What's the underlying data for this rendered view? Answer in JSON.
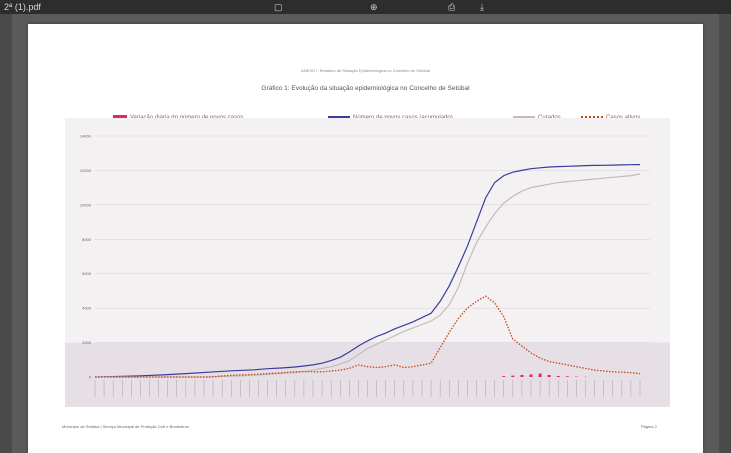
{
  "viewer": {
    "filename": "2ª (1).pdf",
    "icons": [
      "fullscreen-icon",
      "zoom-in-icon",
      "print-icon",
      "download-icon"
    ]
  },
  "document": {
    "header": "ANEXO I: Relatório de Situação Epidemiológica no Concelho de Setúbal",
    "footer_left": "Município de Setúbal | Serviço Municipal de Proteção Civil e Bombeiros",
    "footer_right": "Página 2"
  },
  "chart_data": {
    "type": "line",
    "title": "Gráfico 1: Evolução da situação epidemiológica no Concelho de Setúbal",
    "ylim": [
      0,
      14000
    ],
    "yticks": [
      "0",
      "2000",
      "4000",
      "6000",
      "8000",
      "10000",
      "12000",
      "14000"
    ],
    "legend_position": "top",
    "grid": true,
    "x_index": [
      0,
      5,
      10,
      15,
      20,
      25,
      30,
      35,
      38,
      41,
      44,
      46,
      48,
      50,
      52,
      54,
      56,
      58,
      60,
      62,
      64,
      66,
      68,
      70,
      72,
      74,
      76,
      78,
      80,
      82,
      84,
      86,
      88,
      90,
      92,
      94,
      96,
      98,
      100,
      102,
      104,
      106,
      108,
      110,
      112,
      114,
      116,
      118,
      120
    ],
    "series": [
      {
        "name": "Variação diária do número de novos casos.",
        "style": "bar",
        "color": "#e0246e",
        "values": [
          0,
          0,
          0,
          0,
          0,
          0,
          0,
          0,
          0,
          0,
          0,
          0,
          0,
          0,
          0,
          0,
          0,
          0,
          0,
          0,
          0,
          0,
          0,
          0,
          0,
          0,
          0,
          0,
          0,
          0,
          0,
          0,
          0,
          50,
          80,
          120,
          150,
          200,
          120,
          60,
          40,
          20,
          10,
          0,
          0,
          0,
          0,
          0,
          0
        ]
      },
      {
        "name": "Número de novos casos (acumulado).",
        "style": "solid",
        "color": "#3b3c9b",
        "values": [
          0,
          30,
          70,
          120,
          200,
          280,
          360,
          420,
          480,
          520,
          580,
          640,
          700,
          800,
          950,
          1150,
          1450,
          1800,
          2100,
          2350,
          2550,
          2800,
          3000,
          3200,
          3450,
          3700,
          4400,
          5300,
          6400,
          7600,
          9000,
          10400,
          11300,
          11700,
          11900,
          12000,
          12100,
          12150,
          12200,
          12220,
          12240,
          12260,
          12280,
          12290,
          12300,
          12310,
          12320,
          12330,
          12340
        ]
      },
      {
        "name": "Curados",
        "style": "solid",
        "color": "#c8b9b9",
        "values": [
          0,
          0,
          0,
          0,
          0,
          0,
          50,
          100,
          150,
          200,
          250,
          300,
          400,
          500,
          600,
          750,
          950,
          1300,
          1650,
          1900,
          2150,
          2400,
          2650,
          2850,
          3050,
          3250,
          3600,
          4200,
          5200,
          6600,
          7800,
          8700,
          9500,
          10100,
          10500,
          10800,
          11000,
          11100,
          11200,
          11300,
          11350,
          11400,
          11450,
          11500,
          11550,
          11600,
          11650,
          11700,
          11800
        ]
      },
      {
        "name": "Casos ativos",
        "style": "dotted",
        "color": "#c8461e",
        "values": [
          0,
          0,
          0,
          0,
          0,
          0,
          100,
          150,
          200,
          250,
          300,
          320,
          300,
          300,
          350,
          400,
          500,
          700,
          600,
          550,
          600,
          700,
          550,
          600,
          700,
          800,
          1700,
          2600,
          3400,
          4000,
          4400,
          4700,
          4300,
          3500,
          2200,
          1800,
          1400,
          1100,
          900,
          800,
          700,
          600,
          500,
          400,
          350,
          300,
          280,
          250,
          200
        ]
      }
    ]
  }
}
